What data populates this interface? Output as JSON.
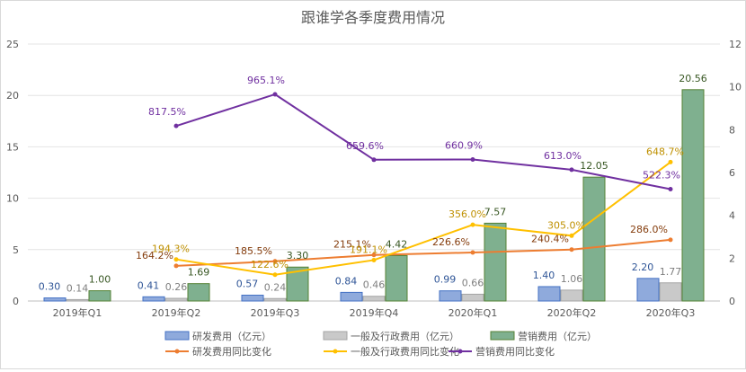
{
  "chart_data": {
    "type": "bar",
    "title": "跟谁学各季度费用情况",
    "categories": [
      "2019年Q1",
      "2019年Q2",
      "2019年Q3",
      "2019年Q4",
      "2020年Q1",
      "2020年Q2",
      "2020年Q3"
    ],
    "y_left": {
      "min": 0,
      "max": 25,
      "ticks": [
        "0",
        "5",
        "10",
        "15",
        "20",
        "25"
      ],
      "step": 5
    },
    "y_right": {
      "min": 0,
      "max": 12,
      "ticks": [
        "0",
        "2",
        "4",
        "6",
        "8",
        "10",
        "12"
      ],
      "step": 2
    },
    "grid": true,
    "legend_position": "bottom",
    "bar_series": [
      {
        "name": "研发费用（亿元）",
        "color": "#8faadc",
        "stroke": "#4472c4",
        "label_color": "#2f5597",
        "values": [
          0.3,
          0.41,
          0.57,
          0.84,
          0.99,
          1.4,
          2.2
        ],
        "labels": [
          "0.30",
          "0.41",
          "0.57",
          "0.84",
          "0.99",
          "1.40",
          "2.20"
        ]
      },
      {
        "name": "一般及行政费用（亿元）",
        "color": "#c9c9c9",
        "stroke": "#a5a5a5",
        "label_color": "#7f7f7f",
        "values": [
          0.14,
          0.26,
          0.24,
          0.46,
          0.66,
          1.06,
          1.77
        ],
        "labels": [
          "0.14",
          "0.26",
          "0.24",
          "0.46",
          "0.66",
          "1.06",
          "1.77"
        ]
      },
      {
        "name": "营销费用（亿元）",
        "color": "#7fb08f",
        "stroke": "#548235",
        "label_color": "#385723",
        "values": [
          1.0,
          1.69,
          3.3,
          4.42,
          7.57,
          12.05,
          20.56
        ],
        "labels": [
          "1.00",
          "1.69",
          "3.30",
          "4.42",
          "7.57",
          "12.05",
          "20.56"
        ]
      }
    ],
    "line_series": [
      {
        "name": "研发费用同比变化",
        "color": "#ed7d31",
        "label_color": "#843c0c",
        "axis": "right",
        "values": [
          null,
          1.642,
          1.855,
          2.151,
          2.266,
          2.404,
          2.86
        ],
        "labels": [
          "",
          "164.2%",
          "185.5%",
          "215.1%",
          "226.6%",
          "240.4%",
          "286.0%"
        ]
      },
      {
        "name": "一般及行政费用同比变化",
        "color": "#ffc000",
        "label_color": "#bf9000",
        "axis": "right",
        "values": [
          null,
          1.943,
          1.226,
          1.911,
          3.56,
          3.05,
          6.487
        ],
        "labels": [
          "",
          "194.3%",
          "122.6%",
          "191.1%",
          "356.0%",
          "305.0%",
          "648.7%"
        ]
      },
      {
        "name": "营销费用同比变化",
        "color": "#7030a0",
        "label_color": "#7030a0",
        "axis": "right",
        "values": [
          null,
          8.175,
          9.651,
          6.596,
          6.609,
          6.13,
          5.223
        ],
        "labels": [
          "",
          "817.5%",
          "965.1%",
          "659.6%",
          "660.9%",
          "613.0%",
          "522.3%"
        ]
      }
    ]
  }
}
